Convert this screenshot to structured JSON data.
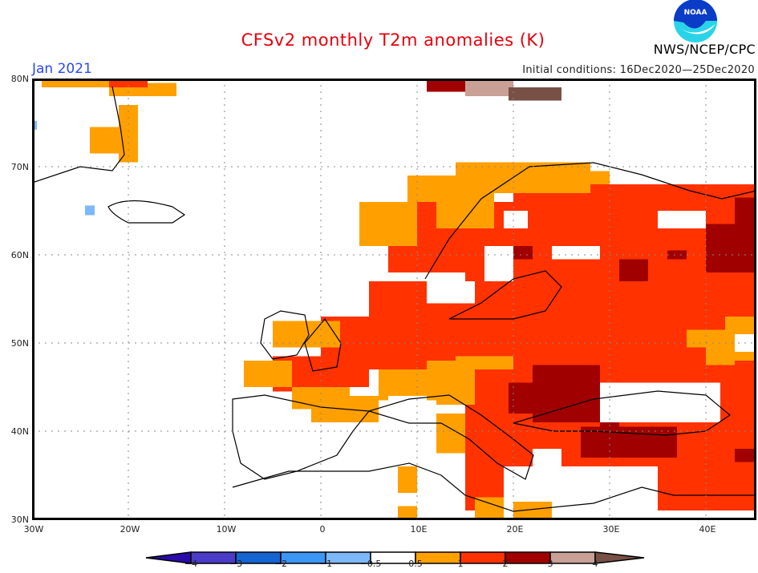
{
  "header": {
    "title": "CFSv2 monthly T2m anomalies (K)",
    "month": "Jan 2021",
    "initial_conditions": "Initial conditions: 16Dec2020—25Dec2020",
    "agency": "NWS/NCEP/CPC",
    "logo_text": "NOAA"
  },
  "axes": {
    "y_ticks": [
      "80N",
      "70N",
      "60N",
      "50N",
      "40N",
      "30N"
    ],
    "x_ticks": [
      "30W",
      "20W",
      "10W",
      "0",
      "10E",
      "20E",
      "30E",
      "40E"
    ],
    "lat_range": [
      30,
      80
    ],
    "lon_range": [
      -30,
      45
    ]
  },
  "legend": {
    "labels": [
      "-4",
      "-3",
      "-2",
      "-1",
      "-0.5",
      "0.5",
      "1",
      "2",
      "3",
      "4"
    ],
    "colors": [
      "#2a0aa8",
      "#4b3cc8",
      "#1464d2",
      "#3c96f5",
      "#7db9fa",
      "#ffffff",
      "#ffa000",
      "#ff3200",
      "#a00000",
      "#c8a096",
      "#785046"
    ]
  },
  "colors": {
    "c05": "#ffa000",
    "c1": "#ff3200",
    "c2": "#a00000",
    "c3": "#c8a096",
    "c4": "#785046",
    "neg1": "#7db9fa"
  }
}
